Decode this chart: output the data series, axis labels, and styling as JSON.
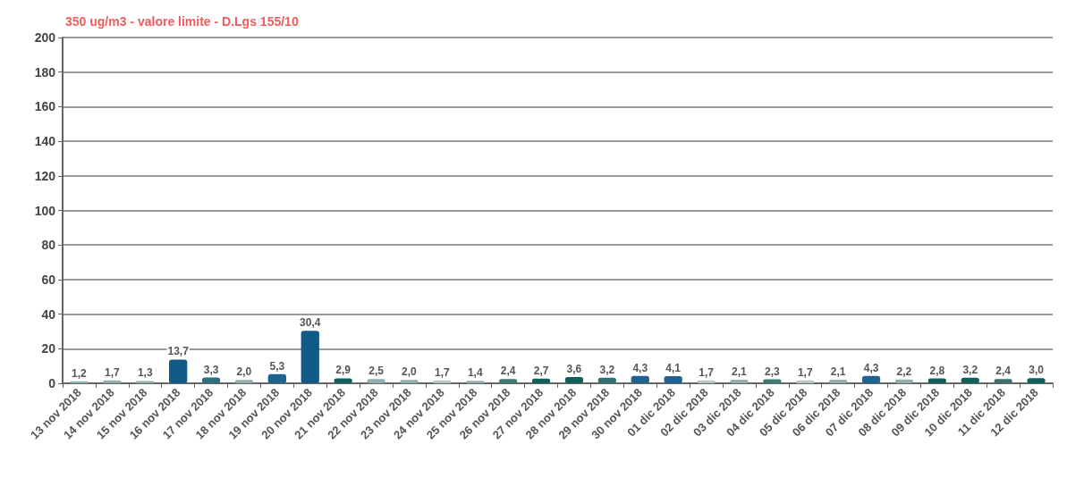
{
  "chart_data": {
    "type": "bar",
    "title": "350 ug/m3 - valore limite - D.Lgs 155/10",
    "categories": [
      "13 nov 2018",
      "14 nov 2018",
      "15 nov 2018",
      "16 nov 2018",
      "17 nov 2018",
      "18 nov 2018",
      "19 nov 2018",
      "20 nov 2018",
      "21 nov 2018",
      "22 nov 2018",
      "23 nov 2018",
      "24 nov 2018",
      "25 nov 2018",
      "26 nov 2018",
      "27 nov 2018",
      "28 nov 2018",
      "29 nov 2018",
      "30 nov 2018",
      "01 dic 2018",
      "02 dic 2018",
      "03 dic 2018",
      "04 dic 2018",
      "05 dic 2018",
      "06 dic 2018",
      "07 dic 2018",
      "08 dic 2018",
      "09 dic 2018",
      "10 dic 2018",
      "11 dic 2018",
      "12 dic 2018"
    ],
    "values": [
      1.2,
      1.7,
      1.3,
      13.7,
      3.3,
      2.0,
      5.3,
      30.4,
      2.9,
      2.5,
      2.0,
      1.7,
      1.4,
      2.4,
      2.7,
      3.6,
      3.2,
      4.3,
      4.1,
      1.7,
      2.1,
      2.3,
      1.7,
      2.1,
      4.3,
      2.2,
      2.8,
      3.2,
      2.4,
      3.0
    ],
    "value_labels": [
      "1,2",
      "1,7",
      "1,3",
      "13,7",
      "3,3",
      "2,0",
      "5,3",
      "30,4",
      "2,9",
      "2,5",
      "2,0",
      "1,7",
      "1,4",
      "2,4",
      "2,7",
      "3,6",
      "3,2",
      "4,3",
      "4,1",
      "1,7",
      "2,1",
      "2,3",
      "1,7",
      "2,1",
      "4,3",
      "2,2",
      "2,8",
      "3,2",
      "2,4",
      "3,0"
    ],
    "colors": [
      "#8fb0ae",
      "#8fb0ae",
      "#8fb0ae",
      "#105b86",
      "#2f6f80",
      "#8fb0ae",
      "#1f6390",
      "#105b86",
      "#0f5f5a",
      "#8fb0ae",
      "#8fb0ae",
      "#b8c8c8",
      "#8fb0ae",
      "#3f7a72",
      "#0f5f5a",
      "#0f5f5a",
      "#2f6f70",
      "#1f6390",
      "#1f6390",
      "#b8c8c8",
      "#8fb0ae",
      "#3f7a72",
      "#b8c8c8",
      "#8fb0ae",
      "#1f6390",
      "#8fb0ae",
      "#0f5f5a",
      "#0f5f5a",
      "#3f6f6a",
      "#0f5f5a"
    ],
    "ylim": [
      0,
      200
    ],
    "yticks": [
      0,
      20,
      40,
      60,
      80,
      100,
      120,
      140,
      160,
      180,
      200
    ],
    "grid": "y"
  }
}
